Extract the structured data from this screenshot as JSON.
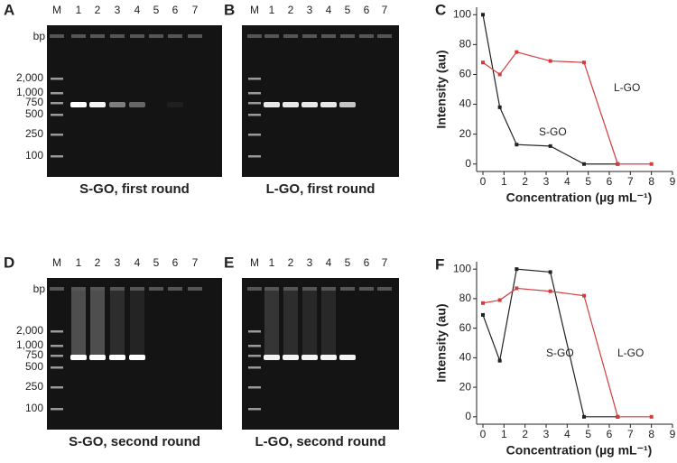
{
  "panels": [
    {
      "letter": "A",
      "lanes": [
        "M",
        "1",
        "2",
        "3",
        "4",
        "5",
        "6",
        "7"
      ],
      "caption": "S-GO, first round",
      "marker_unit": "bp",
      "marker_sizes": [
        "2,000",
        "1,000",
        "750",
        "500",
        "250",
        "100"
      ]
    },
    {
      "letter": "B",
      "lanes": [
        "M",
        "1",
        "2",
        "3",
        "4",
        "5",
        "6",
        "7"
      ],
      "caption": "L-GO, first round"
    },
    {
      "letter": "D",
      "lanes": [
        "M",
        "1",
        "2",
        "3",
        "4",
        "5",
        "6",
        "7"
      ],
      "caption": "S-GO, second round",
      "marker_unit": "bp",
      "marker_sizes": [
        "2,000",
        "1,000",
        "750",
        "500",
        "250",
        "100"
      ]
    },
    {
      "letter": "E",
      "lanes": [
        "M",
        "1",
        "2",
        "3",
        "4",
        "5",
        "6",
        "7"
      ],
      "caption": "L-GO, second round"
    }
  ],
  "chart_data": [
    {
      "type": "line",
      "panel": "C",
      "x_label": "Concentration (µg mL⁻¹)",
      "y_label": "Intensity (au)",
      "x": [
        0,
        0.8,
        1.6,
        3.2,
        4.8,
        6.4,
        8
      ],
      "series": [
        {
          "name": "S-GO",
          "color": "#222222",
          "values": [
            100,
            38,
            13,
            12,
            0,
            0,
            null
          ]
        },
        {
          "name": "L-GO",
          "color": "#d23c3c",
          "values": [
            68,
            60,
            75,
            69,
            68,
            0,
            0
          ]
        }
      ],
      "xlim": [
        -0.3,
        9
      ],
      "xticks": [
        0,
        1,
        2,
        3,
        4,
        5,
        6,
        7,
        8,
        9
      ],
      "ylim": [
        -5,
        105
      ],
      "yticks": [
        0,
        20,
        40,
        60,
        80,
        100
      ]
    },
    {
      "type": "line",
      "panel": "F",
      "x_label": "Concentration (µg mL⁻¹)",
      "y_label": "Intensity (au)",
      "x": [
        0,
        0.8,
        1.6,
        3.2,
        4.8,
        6.4,
        8
      ],
      "series": [
        {
          "name": "S-GO",
          "color": "#222222",
          "values": [
            69,
            38,
            100,
            98,
            0,
            0,
            null
          ]
        },
        {
          "name": "L-GO",
          "color": "#d23c3c",
          "values": [
            77,
            79,
            87,
            85,
            82,
            0,
            0
          ]
        }
      ],
      "xlim": [
        -0.3,
        9
      ],
      "xticks": [
        0,
        1,
        2,
        3,
        4,
        5,
        6,
        7,
        8,
        9
      ],
      "ylim": [
        -5,
        105
      ],
      "yticks": [
        0,
        20,
        40,
        60,
        80,
        100
      ]
    }
  ]
}
